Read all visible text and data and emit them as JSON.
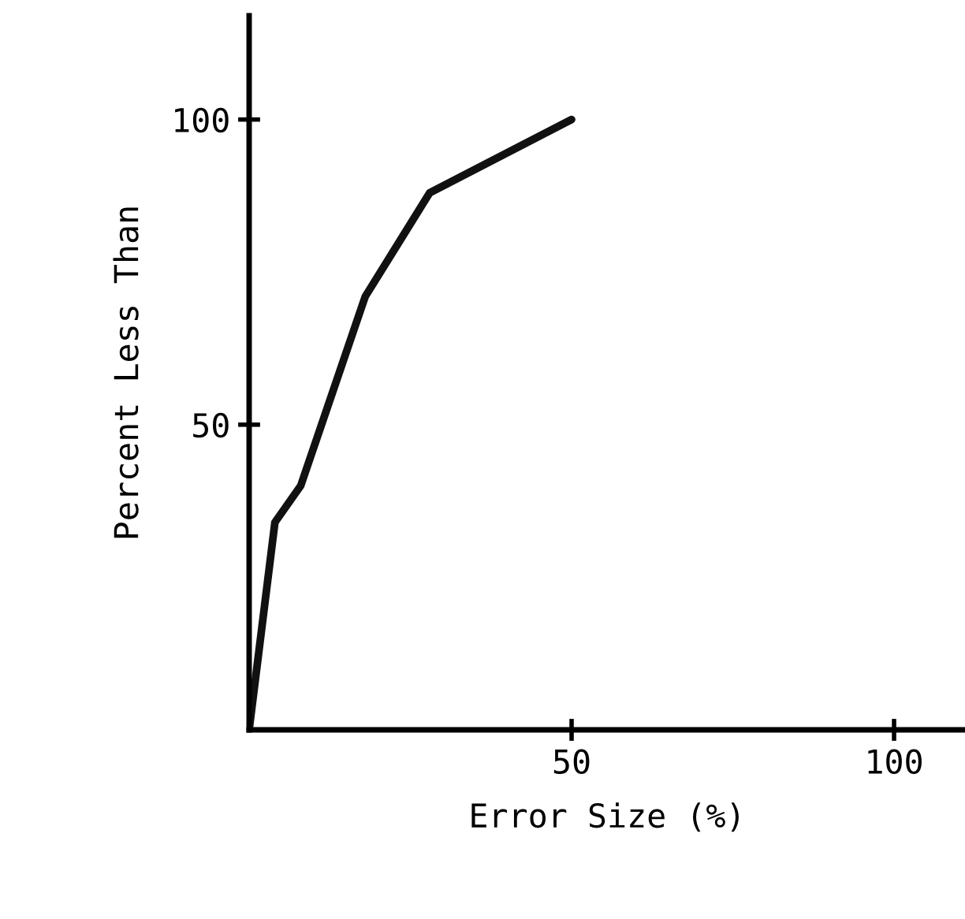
{
  "chart_data": {
    "type": "line",
    "xlabel": "Error Size (%)",
    "ylabel": "Percent Less Than",
    "x": [
      0,
      4,
      8,
      18,
      28,
      50
    ],
    "series": [
      {
        "color": "#111111",
        "values": [
          0,
          34,
          40,
          71,
          88,
          100
        ]
      }
    ],
    "xlim": [
      0,
      111
    ],
    "ylim": [
      0,
      117
    ],
    "xticks": [
      50,
      100
    ],
    "yticks": [
      50,
      100
    ],
    "grid": false,
    "legend": false,
    "marker": "none",
    "line_style": "solid"
  }
}
